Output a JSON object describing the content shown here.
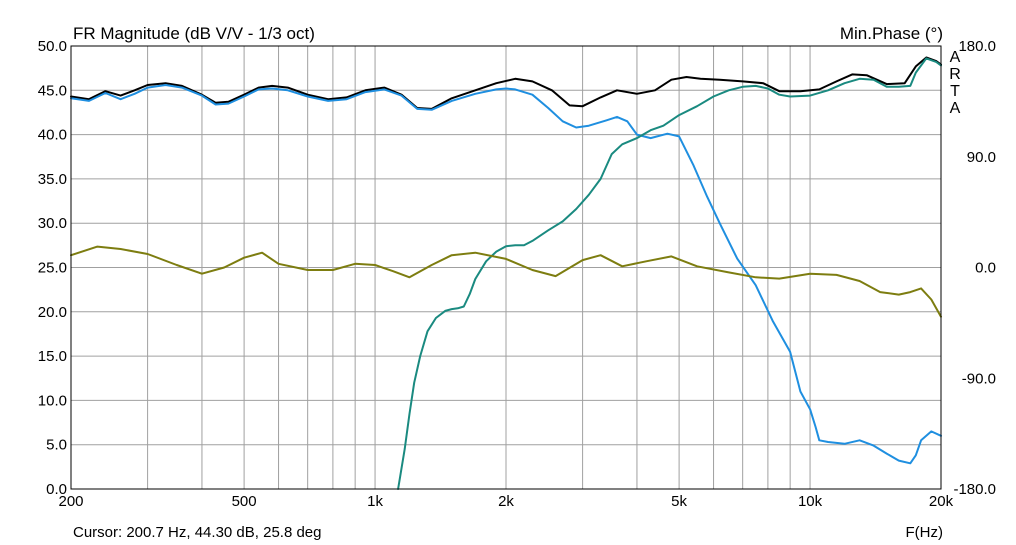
{
  "chart_data": {
    "type": "line",
    "title": "FR Magnitude (dB V/V - 1/3 oct)",
    "right_title": "Min.Phase (°)",
    "watermark": "ARTA",
    "xlabel": "F(Hz)",
    "x_scale": "log",
    "xlim": [
      200,
      20000
    ],
    "ylim": [
      0,
      50
    ],
    "right_ylim": [
      -180,
      180
    ],
    "grid": true,
    "x_ticks": [
      200,
      300,
      400,
      500,
      600,
      700,
      800,
      900,
      1000,
      2000,
      3000,
      4000,
      5000,
      6000,
      7000,
      8000,
      9000,
      10000,
      20000
    ],
    "x_tick_labels": [
      {
        "value": 200,
        "label": "200"
      },
      {
        "value": 500,
        "label": "500"
      },
      {
        "value": 1000,
        "label": "1k"
      },
      {
        "value": 2000,
        "label": "2k"
      },
      {
        "value": 5000,
        "label": "5k"
      },
      {
        "value": 10000,
        "label": "10k"
      },
      {
        "value": 20000,
        "label": "20k"
      }
    ],
    "y_tick_labels": [
      "0.0",
      "5.0",
      "10.0",
      "15.0",
      "20.0",
      "25.0",
      "30.0",
      "35.0",
      "40.0",
      "45.0",
      "50.0"
    ],
    "right_tick_labels": [
      {
        "value": -180,
        "label": "-180.0"
      },
      {
        "value": -90,
        "label": "-90.0"
      },
      {
        "value": 0,
        "label": "0.0"
      },
      {
        "value": 90,
        "label": "90.0"
      },
      {
        "value": 180,
        "label": "180.0"
      }
    ],
    "cursor_text": "Cursor: 200.7 Hz, 44.30 dB, 25.8 deg",
    "series": [
      {
        "color": "#000000",
        "axis": "left",
        "x": [
          200,
          220,
          240,
          260,
          280,
          300,
          330,
          360,
          400,
          430,
          460,
          500,
          540,
          580,
          630,
          700,
          780,
          860,
          950,
          1050,
          1150,
          1250,
          1350,
          1500,
          1700,
          1900,
          2100,
          2300,
          2550,
          2800,
          3000,
          3300,
          3600,
          4000,
          4400,
          4800,
          5200,
          5600,
          6200,
          7000,
          7800,
          8500,
          9500,
          10500,
          11500,
          12500,
          13500,
          15000,
          16500,
          17500,
          18500,
          19500,
          20000
        ],
        "y": [
          44.3,
          44.0,
          44.9,
          44.4,
          45.0,
          45.6,
          45.8,
          45.5,
          44.5,
          43.6,
          43.7,
          44.5,
          45.3,
          45.5,
          45.3,
          44.5,
          44.0,
          44.2,
          45.0,
          45.3,
          44.5,
          43.0,
          42.9,
          44.1,
          45.0,
          45.8,
          46.3,
          46.0,
          45.0,
          43.3,
          43.2,
          44.2,
          45.0,
          44.6,
          45.0,
          46.2,
          46.5,
          46.3,
          46.2,
          46.0,
          45.8,
          44.9,
          44.9,
          45.1,
          46.0,
          46.8,
          46.7,
          45.7,
          45.8,
          47.7,
          48.7,
          48.3,
          47.9
        ]
      },
      {
        "color": "#1f8fe0",
        "axis": "left",
        "x": [
          200,
          220,
          240,
          260,
          280,
          300,
          330,
          360,
          400,
          430,
          460,
          500,
          540,
          580,
          630,
          700,
          780,
          860,
          950,
          1050,
          1150,
          1250,
          1350,
          1500,
          1700,
          1900,
          2000,
          2100,
          2300,
          2500,
          2700,
          2900,
          3100,
          3400,
          3600,
          3800,
          4000,
          4300,
          4700,
          5000,
          5400,
          5800,
          6200,
          6800,
          7500,
          8200,
          9000,
          9500,
          10000,
          10300,
          10500,
          11000,
          12000,
          13000,
          14000,
          15000,
          16000,
          17000,
          17500,
          18000,
          19000,
          20000
        ],
        "y": [
          44.1,
          43.8,
          44.7,
          44.0,
          44.6,
          45.3,
          45.6,
          45.3,
          44.4,
          43.4,
          43.5,
          44.3,
          45.1,
          45.2,
          45.0,
          44.3,
          43.8,
          44.0,
          44.8,
          45.1,
          44.4,
          42.9,
          42.8,
          43.8,
          44.6,
          45.1,
          45.2,
          45.1,
          44.5,
          43.0,
          41.5,
          40.8,
          41.0,
          41.6,
          42.0,
          41.5,
          40.0,
          39.6,
          40.1,
          39.8,
          36.5,
          33.0,
          30.0,
          26.0,
          23.0,
          19.0,
          15.5,
          11.0,
          9.0,
          7.0,
          5.5,
          5.3,
          5.1,
          5.5,
          4.9,
          4.0,
          3.2,
          2.9,
          3.8,
          5.5,
          6.5,
          6.0
        ]
      },
      {
        "color": "#1a8a80",
        "axis": "left",
        "x": [
          1130,
          1170,
          1200,
          1230,
          1270,
          1320,
          1380,
          1450,
          1500,
          1550,
          1600,
          1650,
          1700,
          1800,
          1900,
          2000,
          2100,
          2200,
          2300,
          2500,
          2700,
          2900,
          3100,
          3300,
          3500,
          3700,
          4000,
          4300,
          4600,
          5000,
          5500,
          6000,
          6500,
          7000,
          7500,
          8000,
          8500,
          9000,
          10000,
          11000,
          12000,
          13000,
          14000,
          15000,
          16000,
          17000,
          17500,
          18500,
          19500,
          20000
        ],
        "y": [
          0.0,
          4.5,
          8.5,
          12.0,
          15.0,
          17.8,
          19.3,
          20.1,
          20.3,
          20.4,
          20.6,
          22.0,
          23.7,
          25.7,
          26.8,
          27.4,
          27.5,
          27.5,
          28.0,
          29.2,
          30.2,
          31.6,
          33.2,
          35.0,
          37.8,
          38.9,
          39.6,
          40.5,
          41.0,
          42.2,
          43.2,
          44.3,
          45.0,
          45.4,
          45.5,
          45.2,
          44.5,
          44.3,
          44.4,
          45.0,
          45.8,
          46.3,
          46.2,
          45.4,
          45.4,
          45.5,
          47.0,
          48.6,
          48.2,
          47.8
        ]
      },
      {
        "color": "#7d7d10",
        "axis": "right",
        "x": [
          200,
          230,
          260,
          300,
          350,
          400,
          450,
          500,
          550,
          600,
          700,
          800,
          900,
          1000,
          1100,
          1200,
          1350,
          1500,
          1700,
          2000,
          2300,
          2600,
          3000,
          3300,
          3700,
          4200,
          4800,
          5500,
          6500,
          7500,
          8500,
          10000,
          11500,
          13000,
          14500,
          16000,
          17000,
          18000,
          19000,
          20000
        ],
        "y": [
          10,
          17,
          15,
          11,
          2,
          -5,
          0,
          8,
          12,
          3,
          -2,
          -2,
          3,
          2,
          -3,
          -8,
          2,
          10,
          12,
          7,
          -2,
          -7,
          6,
          10,
          1,
          5,
          9,
          1,
          -4,
          -8,
          -9,
          -5,
          -6,
          -11,
          -20,
          -22,
          -20,
          -17,
          -26,
          -40
        ]
      }
    ]
  }
}
